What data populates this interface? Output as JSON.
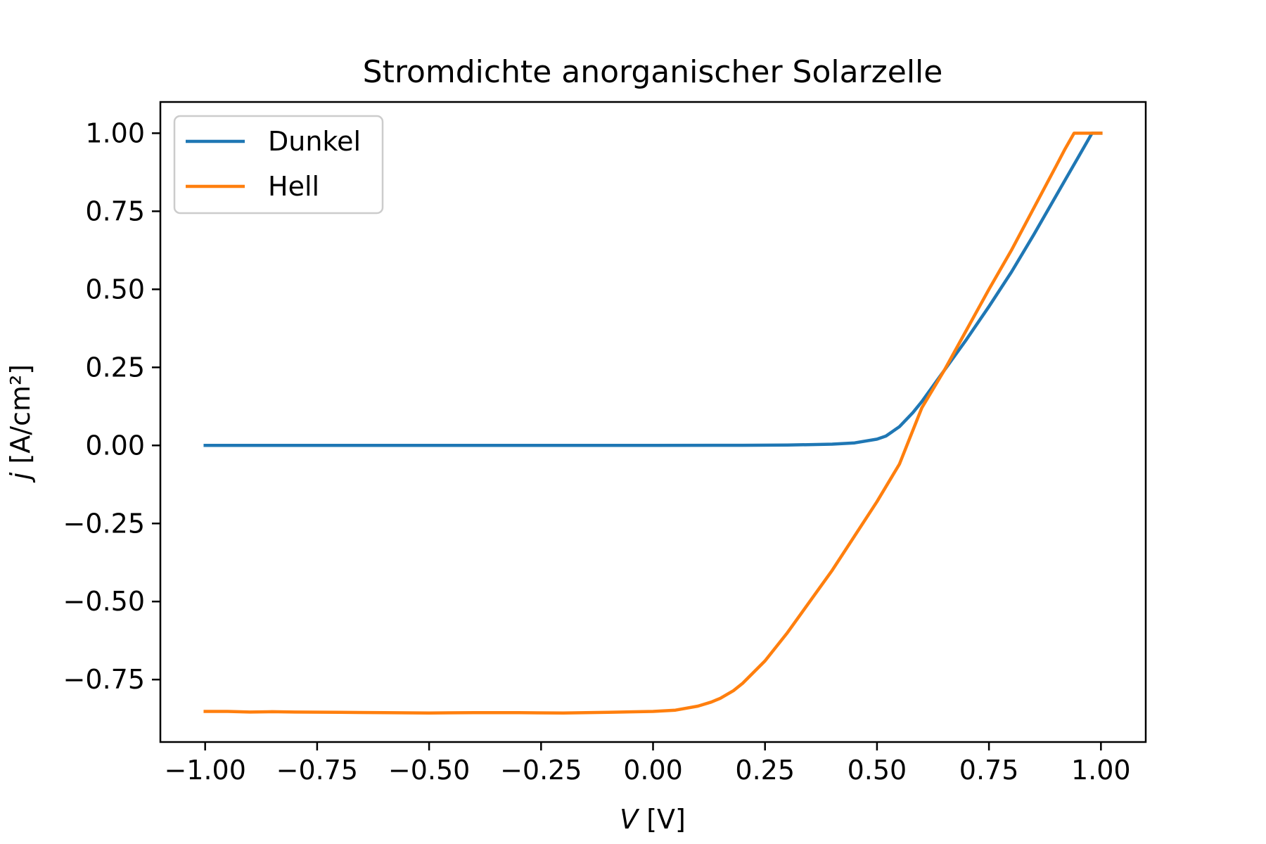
{
  "chart_data": {
    "type": "line",
    "title": "Stromdichte anorganischer Solarzelle",
    "xlabel_var": "V",
    "xlabel_unit": " [V]",
    "ylabel_var": "j",
    "ylabel_unit": " [A/cm²]",
    "xlim": [
      -1.1,
      1.1
    ],
    "ylim": [
      -0.95,
      1.1
    ],
    "xticks": [
      -1.0,
      -0.75,
      -0.5,
      -0.25,
      0.0,
      0.25,
      0.5,
      0.75,
      1.0
    ],
    "xtick_labels": [
      "−1.00",
      "−0.75",
      "−0.50",
      "−0.25",
      "0.00",
      "0.25",
      "0.50",
      "0.75",
      "1.00"
    ],
    "yticks": [
      -0.75,
      -0.5,
      -0.25,
      0.0,
      0.25,
      0.5,
      0.75,
      1.0
    ],
    "ytick_labels": [
      "−0.75",
      "−0.50",
      "−0.25",
      "0.00",
      "0.25",
      "0.50",
      "0.75",
      "1.00"
    ],
    "grid": false,
    "legend_position": "upper-left",
    "series": [
      {
        "name": "Dunkel",
        "color": "#1f77b4",
        "points": [
          [
            -1.0,
            0.0
          ],
          [
            -0.5,
            0.0
          ],
          [
            0.0,
            0.0
          ],
          [
            0.2,
            0.0005
          ],
          [
            0.3,
            0.001
          ],
          [
            0.4,
            0.004
          ],
          [
            0.45,
            0.008
          ],
          [
            0.5,
            0.02
          ],
          [
            0.52,
            0.03
          ],
          [
            0.55,
            0.06
          ],
          [
            0.58,
            0.105
          ],
          [
            0.6,
            0.14
          ],
          [
            0.625,
            0.19
          ],
          [
            0.65,
            0.24
          ],
          [
            0.7,
            0.34
          ],
          [
            0.75,
            0.445
          ],
          [
            0.8,
            0.555
          ],
          [
            0.85,
            0.675
          ],
          [
            0.9,
            0.8
          ],
          [
            0.95,
            0.925
          ],
          [
            0.98,
            1.0
          ],
          [
            1.0,
            1.0
          ]
        ]
      },
      {
        "name": "Hell",
        "color": "#ff7f0e",
        "points": [
          [
            -1.0,
            -0.852
          ],
          [
            -0.95,
            -0.852
          ],
          [
            -0.9,
            -0.854
          ],
          [
            -0.85,
            -0.853
          ],
          [
            -0.8,
            -0.854
          ],
          [
            -0.7,
            -0.855
          ],
          [
            -0.6,
            -0.856
          ],
          [
            -0.5,
            -0.857
          ],
          [
            -0.4,
            -0.856
          ],
          [
            -0.3,
            -0.856
          ],
          [
            -0.2,
            -0.857
          ],
          [
            -0.1,
            -0.855
          ],
          [
            0.0,
            -0.852
          ],
          [
            0.05,
            -0.848
          ],
          [
            0.1,
            -0.835
          ],
          [
            0.13,
            -0.822
          ],
          [
            0.15,
            -0.81
          ],
          [
            0.18,
            -0.785
          ],
          [
            0.2,
            -0.762
          ],
          [
            0.25,
            -0.69
          ],
          [
            0.3,
            -0.6
          ],
          [
            0.35,
            -0.5
          ],
          [
            0.4,
            -0.4
          ],
          [
            0.45,
            -0.29
          ],
          [
            0.5,
            -0.18
          ],
          [
            0.55,
            -0.06
          ],
          [
            0.6,
            0.12
          ],
          [
            0.65,
            0.24
          ],
          [
            0.7,
            0.37
          ],
          [
            0.75,
            0.5
          ],
          [
            0.8,
            0.625
          ],
          [
            0.85,
            0.76
          ],
          [
            0.9,
            0.895
          ],
          [
            0.92,
            0.95
          ],
          [
            0.94,
            1.0
          ],
          [
            0.96,
            1.0
          ],
          [
            1.0,
            1.0
          ]
        ]
      }
    ]
  }
}
